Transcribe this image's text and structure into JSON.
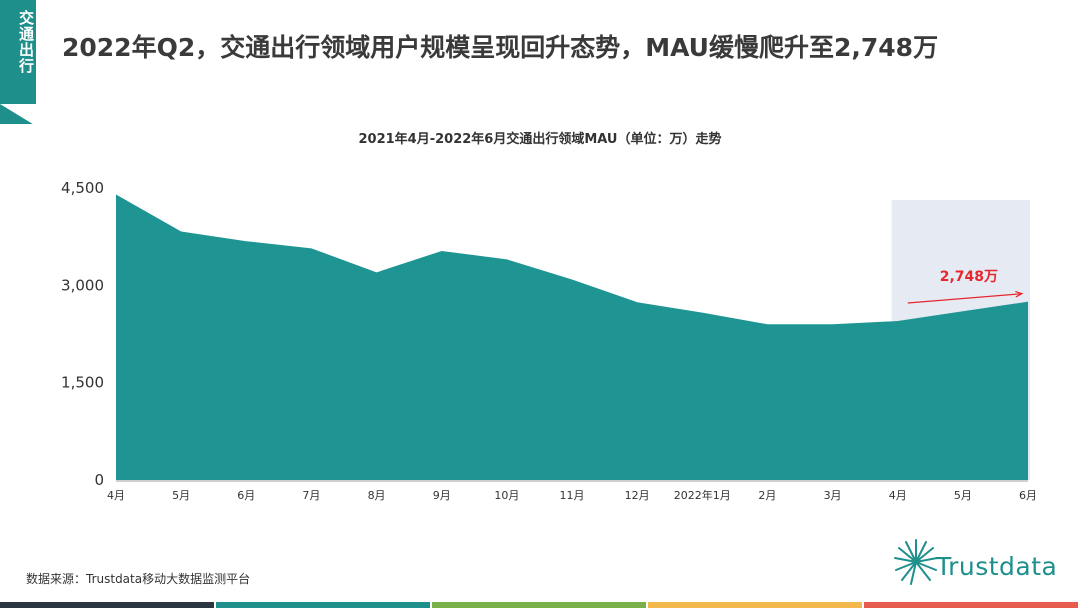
{
  "side_tab": {
    "label": "交通出行"
  },
  "header": {
    "title": "2022年Q2，交通出行领域用户规模呈现回升态势，MAU缓慢爬升至2,748万"
  },
  "chart_data": {
    "type": "area",
    "title": "2021年4月-2022年6月交通出行领域MAU（单位：万）走势",
    "categories": [
      "4月",
      "5月",
      "6月",
      "7月",
      "8月",
      "9月",
      "10月",
      "11月",
      "12月",
      "2022年1月",
      "2月",
      "3月",
      "4月",
      "5月",
      "6月"
    ],
    "series": [
      {
        "values": [
          4400,
          3830,
          3680,
          3570,
          3200,
          3530,
          3400,
          3090,
          2740,
          2580,
          2400,
          2400,
          2450,
          2600,
          2748
        ]
      }
    ],
    "yticks": [
      0,
      1500,
      3000,
      4500
    ],
    "ytick_labels": [
      "0",
      "1,500",
      "3,000",
      "4,500"
    ],
    "ylim": [
      0,
      4500
    ],
    "highlight_range": [
      12,
      14
    ],
    "annotation": {
      "text": "2,748万",
      "color": "#e8262d"
    },
    "colors": {
      "area": "#1f9593",
      "highlight": "#e6ebf3",
      "axis": "#bfbfbf"
    }
  },
  "footer": {
    "source": "数据来源：Trustdata移动大数据监测平台",
    "logo_text": "Trustdata"
  },
  "bottom_bar_colors": [
    "#2b3640",
    "#1f8f8c",
    "#7ab04a",
    "#f2b84b",
    "#e65c4f"
  ]
}
